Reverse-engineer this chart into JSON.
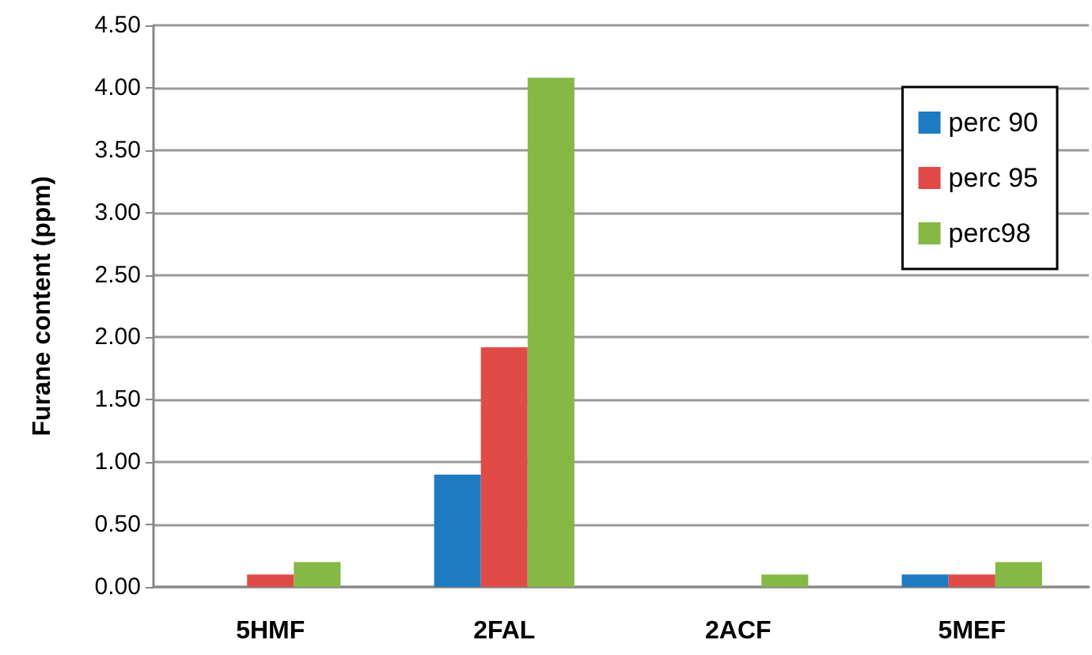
{
  "chart_data": {
    "type": "bar",
    "ylabel": "Furane content (ppm)",
    "categories": [
      "5HMF",
      "2FAL",
      "2ACF",
      "5MEF"
    ],
    "series": [
      {
        "name": "perc 90",
        "color": "#1f7bc1",
        "values": [
          0,
          0.9,
          0,
          0.1
        ]
      },
      {
        "name": "perc 95",
        "color": "#e04b48",
        "values": [
          0.1,
          1.92,
          0,
          0.1
        ]
      },
      {
        "name": "perc98",
        "color": "#86b846",
        "values": [
          0.2,
          4.08,
          0.1,
          0.2
        ]
      }
    ],
    "ylim": [
      0,
      4.5
    ],
    "yticks": [
      {
        "value": 0,
        "label": "0.00"
      },
      {
        "value": 0.5,
        "label": "0.50"
      },
      {
        "value": 1,
        "label": "1.00"
      },
      {
        "value": 1.5,
        "label": "1.50"
      },
      {
        "value": 2,
        "label": "2.00"
      },
      {
        "value": 2.5,
        "label": "2.50"
      },
      {
        "value": 3,
        "label": "3.00"
      },
      {
        "value": 3.5,
        "label": "3.50"
      },
      {
        "value": 4,
        "label": "4.00"
      },
      {
        "value": 4.5,
        "label": "4.50"
      }
    ],
    "grid": "y",
    "legend": "top right"
  }
}
